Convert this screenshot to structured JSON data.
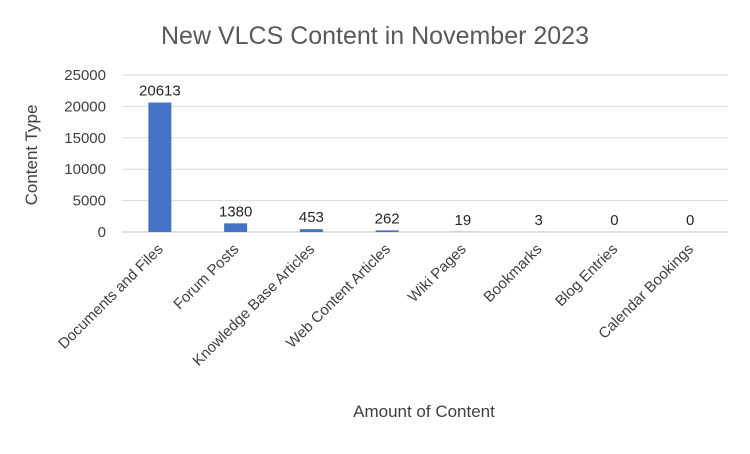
{
  "chart_data": {
    "type": "bar",
    "title": "New VLCS Content in November 2023",
    "xlabel": "Amount of Content",
    "ylabel": "Content Type",
    "categories": [
      "Documents and Files",
      "Forum Posts",
      "Knowledge Base Articles",
      "Web Content Articles",
      "Wiki Pages",
      "Bookmarks",
      "Blog Entries",
      "Calendar Bookings"
    ],
    "values": [
      20613,
      1380,
      453,
      262,
      19,
      3,
      0,
      0
    ],
    "ylim": [
      0,
      25000
    ],
    "yticks": [
      0,
      5000,
      10000,
      15000,
      20000,
      25000
    ],
    "data_labels": true,
    "grid": "horizontal",
    "legend": "none",
    "bar_color": "#4472C4"
  }
}
